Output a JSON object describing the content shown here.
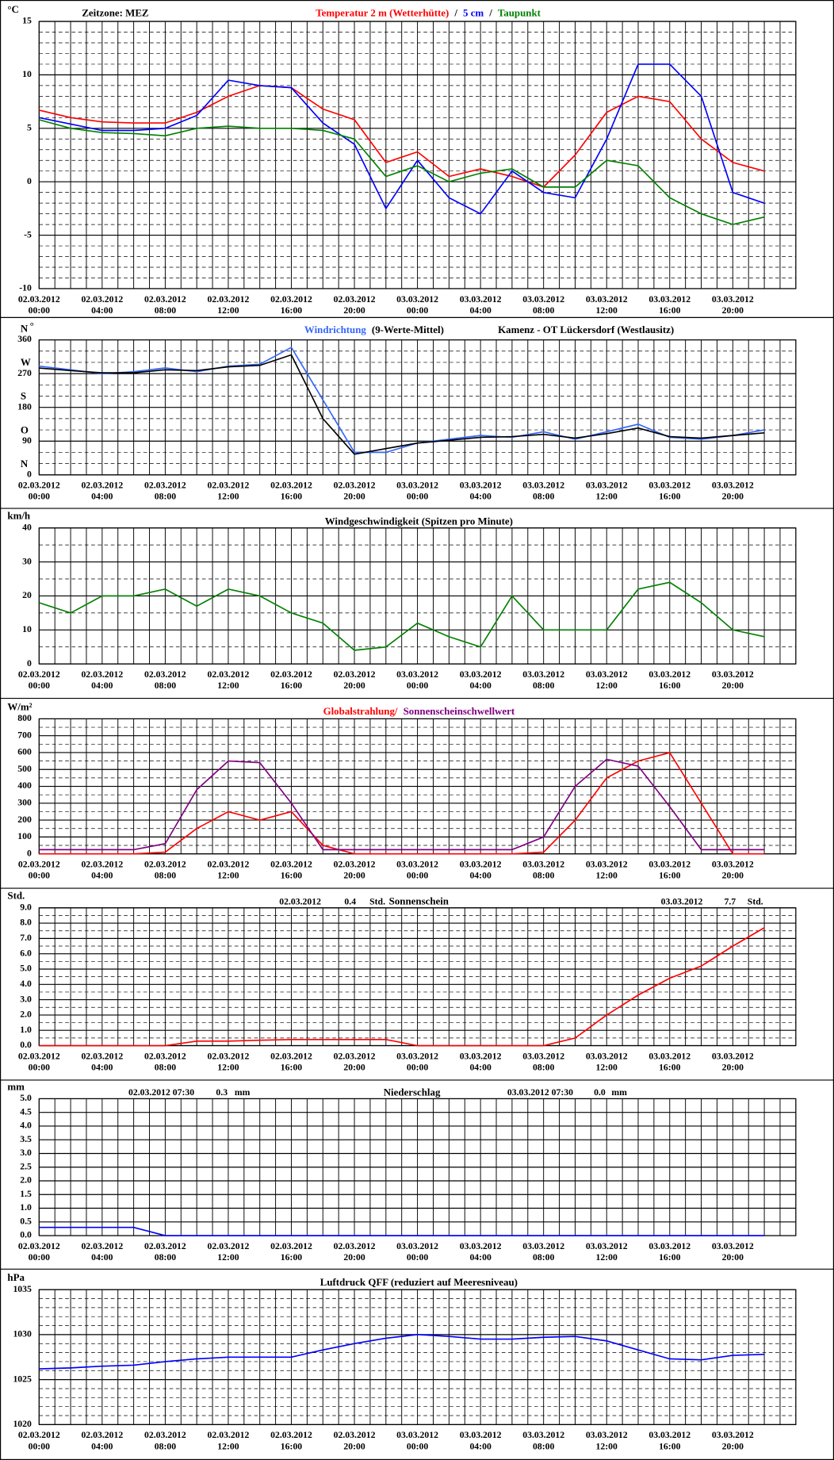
{
  "time_axis": {
    "dates": [
      "02.03.2012",
      "02.03.2012",
      "02.03.2012",
      "02.03.2012",
      "02.03.2012",
      "02.03.2012",
      "03.03.2012",
      "03.03.2012",
      "03.03.2012",
      "03.03.2012",
      "03.03.2012",
      "03.03.2012"
    ],
    "times": [
      "00:00",
      "04:00",
      "08:00",
      "12:00",
      "16:00",
      "20:00",
      "00:00",
      "04:00",
      "08:00",
      "12:00",
      "16:00",
      "20:00"
    ]
  },
  "chart_data": [
    {
      "type": "line",
      "title": "Zeitzone: MEZ",
      "y_label": "°C",
      "legend_separator": "/",
      "ylim": [
        -10,
        15
      ],
      "yticks": [
        -10,
        -5,
        0,
        5,
        10,
        15
      ],
      "series": [
        {
          "name": "Temperatur 2 m (Wetterhütte)",
          "color": "#ff0000",
          "values": [
            6.7,
            6.0,
            5.6,
            5.5,
            5.5,
            6.5,
            8.0,
            9.0,
            8.8,
            6.8,
            5.8,
            1.8,
            2.8,
            0.5,
            1.2,
            0.5,
            -0.5,
            2.5,
            6.5,
            8.0,
            7.5,
            4.0,
            1.8,
            1.0
          ]
        },
        {
          "name": "5 cm",
          "color": "#0000ff",
          "values": [
            6.0,
            5.4,
            4.8,
            4.8,
            5.0,
            6.2,
            9.5,
            9.0,
            8.8,
            5.5,
            3.5,
            -2.5,
            2.0,
            -1.5,
            -3.0,
            1.0,
            -1.0,
            -1.5,
            4.0,
            11.0,
            11.0,
            8.0,
            -1.0,
            -2.0
          ]
        },
        {
          "name": "Taupunkt",
          "color": "#008000",
          "values": [
            5.8,
            5.0,
            4.6,
            4.5,
            4.3,
            5.0,
            5.2,
            5.0,
            5.0,
            4.8,
            4.0,
            0.5,
            1.5,
            0.0,
            0.8,
            1.2,
            -0.5,
            -0.5,
            2.0,
            1.5,
            -1.5,
            -3.0,
            -4.0,
            -3.3
          ]
        }
      ]
    },
    {
      "type": "line",
      "y_label": "°",
      "ytick_letters": [
        "N",
        "O",
        "S",
        "W",
        "N"
      ],
      "subtitle": "Kamenz - OT Lückersdorf (Westlausitz)",
      "ylim": [
        0,
        360
      ],
      "yticks": [
        0,
        90,
        180,
        270,
        360
      ],
      "series": [
        {
          "name": "Windrichtung",
          "color": "#3366ff",
          "values": [
            290,
            280,
            270,
            275,
            285,
            275,
            290,
            295,
            340,
            200,
            60,
            60,
            85,
            95,
            105,
            100,
            115,
            95,
            115,
            135,
            100,
            95,
            105,
            120
          ]
        },
        {
          "name": "(9-Werte-Mittel)",
          "color": "#000000",
          "values": [
            285,
            278,
            272,
            272,
            280,
            278,
            288,
            292,
            320,
            150,
            55,
            70,
            85,
            92,
            100,
            102,
            108,
            98,
            110,
            125,
            102,
            98,
            105,
            112
          ]
        }
      ]
    },
    {
      "type": "line",
      "title": "Windgeschwindigkeit (Spitzen pro Minute)",
      "y_label": "km/h",
      "ylim": [
        0,
        40
      ],
      "yticks": [
        0,
        10,
        20,
        30,
        40
      ],
      "series": [
        {
          "color": "#008000",
          "values": [
            18,
            15,
            20,
            20,
            22,
            17,
            22,
            20,
            15,
            12,
            4,
            5,
            12,
            8,
            5,
            20,
            10,
            10,
            10,
            22,
            24,
            18,
            10,
            8
          ]
        }
      ]
    },
    {
      "type": "line",
      "y_label": "W/m²",
      "ylim": [
        0,
        800
      ],
      "yticks": [
        0,
        100,
        200,
        300,
        400,
        500,
        600,
        700,
        800
      ],
      "series": [
        {
          "name": "Globalstrahlung/",
          "color": "#ff0000",
          "values": [
            0,
            0,
            0,
            0,
            10,
            150,
            250,
            200,
            250,
            50,
            0,
            0,
            0,
            0,
            0,
            0,
            10,
            200,
            450,
            550,
            600,
            300,
            0,
            0
          ]
        },
        {
          "name": "Sonnenscheinschwellwert",
          "color": "#800080",
          "values": [
            25,
            25,
            25,
            25,
            60,
            380,
            550,
            540,
            300,
            25,
            25,
            25,
            25,
            25,
            25,
            25,
            100,
            400,
            560,
            520,
            280,
            25,
            25,
            25
          ]
        }
      ]
    },
    {
      "type": "line",
      "title": "Sonnenschein",
      "y_label": "Std.",
      "annotations": [
        "02.03.2012",
        "0.4",
        "Std.",
        "03.03.2012",
        "7.7",
        "Std."
      ],
      "ylim": [
        0,
        9
      ],
      "yticks": [
        {
          "value": 0,
          "label": "0.0"
        },
        {
          "value": 1,
          "label": "1.0"
        },
        {
          "value": 2,
          "label": "2.0"
        },
        {
          "value": 3,
          "label": "3.0"
        },
        {
          "value": 4,
          "label": "4.0"
        },
        {
          "value": 5,
          "label": "5.0"
        },
        {
          "value": 6,
          "label": "6.0"
        },
        {
          "value": 7,
          "label": "7.0"
        },
        {
          "value": 8,
          "label": "8.0"
        },
        {
          "value": 9,
          "label": "9.0"
        }
      ],
      "series": [
        {
          "color": "#ff0000",
          "values": [
            0,
            0,
            0,
            0,
            0,
            0.3,
            0.3,
            0.35,
            0.4,
            0.4,
            0.4,
            0.4,
            0,
            0,
            0,
            0,
            0,
            0.5,
            2.0,
            3.3,
            4.4,
            5.2,
            6.5,
            7.7
          ]
        }
      ]
    },
    {
      "type": "line",
      "title": "Niederschlag",
      "y_label": "mm",
      "annotations": [
        "02.03.2012 07:30",
        "0.3",
        "mm",
        "03.03.2012 07:30",
        "0.0",
        "mm"
      ],
      "ylim": [
        0,
        5
      ],
      "yticks": [
        {
          "value": 0,
          "label": "0.0"
        },
        {
          "value": 0.5,
          "label": "0.5"
        },
        {
          "value": 1,
          "label": "1.0"
        },
        {
          "value": 1.5,
          "label": "1.5"
        },
        {
          "value": 2,
          "label": "2.0"
        },
        {
          "value": 2.5,
          "label": "2.5"
        },
        {
          "value": 3,
          "label": "3.0"
        },
        {
          "value": 3.5,
          "label": "3.5"
        },
        {
          "value": 4,
          "label": "4.0"
        },
        {
          "value": 4.5,
          "label": "4.5"
        },
        {
          "value": 5,
          "label": "5.0"
        }
      ],
      "series": [
        {
          "color": "#0000ff",
          "values": [
            0.3,
            0.3,
            0.3,
            0.3,
            0,
            0,
            0,
            0,
            0,
            0,
            0,
            0,
            0,
            0,
            0,
            0,
            0,
            0,
            0,
            0,
            0,
            0,
            0,
            0
          ]
        }
      ]
    },
    {
      "type": "line",
      "title": "Luftdruck QFF (reduziert auf Meeresniveau)",
      "y_label": "hPa",
      "ylim": [
        1020,
        1035
      ],
      "yticks": [
        1020,
        1025,
        1030,
        1035
      ],
      "series": [
        {
          "color": "#0000ff",
          "values": [
            1026.2,
            1026.3,
            1026.5,
            1026.6,
            1027.0,
            1027.3,
            1027.5,
            1027.5,
            1027.5,
            1028.3,
            1029.0,
            1029.6,
            1030.0,
            1029.8,
            1029.5,
            1029.5,
            1029.7,
            1029.8,
            1029.3,
            1028.3,
            1027.3,
            1027.2,
            1027.7,
            1027.8
          ]
        }
      ]
    }
  ]
}
